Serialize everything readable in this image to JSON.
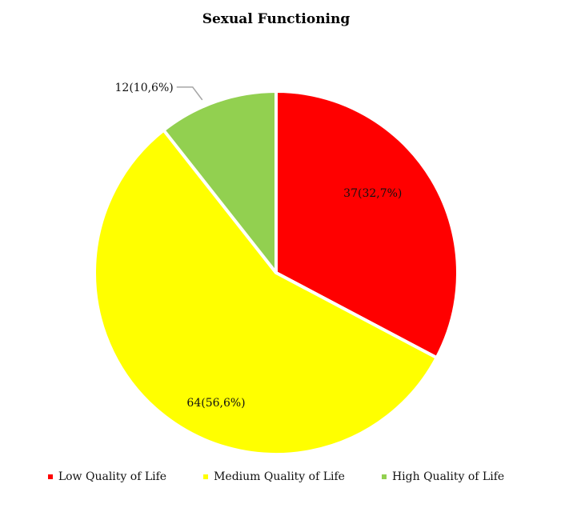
{
  "chart_data": {
    "type": "pie",
    "title": "Sexual Functioning",
    "slices": [
      {
        "name": "Low Quality of Life",
        "value": 37,
        "percent": "32,7%",
        "label": "37(32,7%)",
        "color": "#ff0000"
      },
      {
        "name": "Medium Quality of Life",
        "value": 64,
        "percent": "56,6%",
        "label": "64(56,6%)",
        "color": "#ffff00"
      },
      {
        "name": "High Quality of Life",
        "value": 12,
        "percent": "10,6%",
        "label": "12(10,6%)",
        "color": "#92d050"
      }
    ],
    "start_angle": "12 o'clock",
    "direction": "clockwise",
    "legend_position": "bottom"
  }
}
